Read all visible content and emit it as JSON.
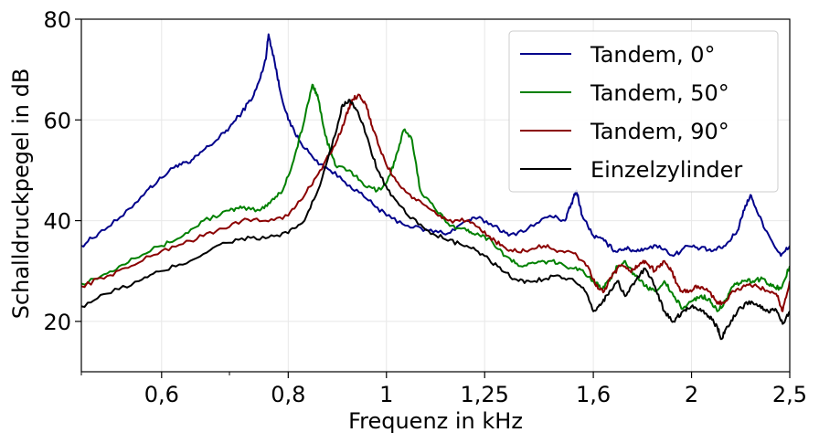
{
  "chart_data": {
    "type": "line",
    "xlabel": "Frequenz in kHz",
    "ylabel": "Schalldruckpegel in dB",
    "xscale": "log",
    "xlim": [
      0.5,
      2.5
    ],
    "ylim": [
      10,
      80
    ],
    "grid": true,
    "legend_position": "top-right",
    "x_ticks": [
      {
        "value": 0.6,
        "label": "0,6"
      },
      {
        "value": 0.8,
        "label": "0,8"
      },
      {
        "value": 1.0,
        "label": "1"
      },
      {
        "value": 1.25,
        "label": "1,25"
      },
      {
        "value": 1.6,
        "label": "1,6"
      },
      {
        "value": 2.0,
        "label": "2"
      },
      {
        "value": 2.5,
        "label": "2,5"
      }
    ],
    "x_minor_ticks": [
      0.5,
      0.7
    ],
    "y_ticks": [
      {
        "value": 20,
        "label": "20"
      },
      {
        "value": 40,
        "label": "40"
      },
      {
        "value": 60,
        "label": "60"
      },
      {
        "value": 80,
        "label": "80"
      }
    ],
    "series": [
      {
        "name": "Tandem, 0°",
        "color": "#00008b",
        "points": [
          [
            0.5,
            35
          ],
          [
            0.52,
            37.5
          ],
          [
            0.55,
            41
          ],
          [
            0.58,
            46
          ],
          [
            0.6,
            48.5
          ],
          [
            0.62,
            51
          ],
          [
            0.64,
            51.5
          ],
          [
            0.66,
            54
          ],
          [
            0.68,
            56
          ],
          [
            0.7,
            58.5
          ],
          [
            0.72,
            61.5
          ],
          [
            0.74,
            65
          ],
          [
            0.75,
            68
          ],
          [
            0.76,
            72
          ],
          [
            0.765,
            77
          ],
          [
            0.775,
            72
          ],
          [
            0.785,
            66
          ],
          [
            0.8,
            60
          ],
          [
            0.82,
            56
          ],
          [
            0.85,
            52
          ],
          [
            0.88,
            50
          ],
          [
            0.92,
            47
          ],
          [
            0.96,
            44
          ],
          [
            1.0,
            41
          ],
          [
            1.05,
            39
          ],
          [
            1.1,
            38
          ],
          [
            1.15,
            37.5
          ],
          [
            1.2,
            40
          ],
          [
            1.23,
            40.5
          ],
          [
            1.28,
            39
          ],
          [
            1.32,
            37
          ],
          [
            1.38,
            38.5
          ],
          [
            1.45,
            41
          ],
          [
            1.5,
            40
          ],
          [
            1.52,
            43
          ],
          [
            1.54,
            46
          ],
          [
            1.56,
            41
          ],
          [
            1.6,
            37
          ],
          [
            1.64,
            36
          ],
          [
            1.68,
            34
          ],
          [
            1.72,
            34.5
          ],
          [
            1.76,
            34
          ],
          [
            1.8,
            34.5
          ],
          [
            1.86,
            35
          ],
          [
            1.92,
            33
          ],
          [
            1.98,
            35
          ],
          [
            2.04,
            34.5
          ],
          [
            2.1,
            34
          ],
          [
            2.16,
            35
          ],
          [
            2.22,
            38
          ],
          [
            2.26,
            43
          ],
          [
            2.29,
            45
          ],
          [
            2.33,
            41
          ],
          [
            2.4,
            36
          ],
          [
            2.45,
            33
          ],
          [
            2.5,
            35
          ]
        ]
      },
      {
        "name": "Tandem, 50°",
        "color": "#008000",
        "points": [
          [
            0.5,
            27.5
          ],
          [
            0.53,
            29.5
          ],
          [
            0.56,
            32.5
          ],
          [
            0.6,
            35
          ],
          [
            0.63,
            37
          ],
          [
            0.66,
            40
          ],
          [
            0.7,
            42
          ],
          [
            0.72,
            42.5
          ],
          [
            0.75,
            42
          ],
          [
            0.77,
            44
          ],
          [
            0.79,
            46
          ],
          [
            0.81,
            52
          ],
          [
            0.83,
            60
          ],
          [
            0.845,
            67
          ],
          [
            0.855,
            65
          ],
          [
            0.87,
            57
          ],
          [
            0.89,
            51
          ],
          [
            0.92,
            50
          ],
          [
            0.95,
            47
          ],
          [
            0.98,
            46
          ],
          [
            1.0,
            47.5
          ],
          [
            1.02,
            52
          ],
          [
            1.04,
            58
          ],
          [
            1.06,
            56
          ],
          [
            1.08,
            46
          ],
          [
            1.12,
            42
          ],
          [
            1.16,
            39
          ],
          [
            1.2,
            38
          ],
          [
            1.23,
            37.5
          ],
          [
            1.27,
            36
          ],
          [
            1.31,
            33
          ],
          [
            1.35,
            31
          ],
          [
            1.4,
            31.5
          ],
          [
            1.45,
            32
          ],
          [
            1.5,
            31
          ],
          [
            1.55,
            30.5
          ],
          [
            1.6,
            28
          ],
          [
            1.63,
            26.5
          ],
          [
            1.66,
            28
          ],
          [
            1.69,
            31
          ],
          [
            1.72,
            32
          ],
          [
            1.76,
            29
          ],
          [
            1.8,
            27
          ],
          [
            1.84,
            26
          ],
          [
            1.88,
            28
          ],
          [
            1.92,
            25
          ],
          [
            1.96,
            22.5
          ],
          [
            2.0,
            24
          ],
          [
            2.04,
            25
          ],
          [
            2.08,
            24.5
          ],
          [
            2.12,
            22
          ],
          [
            2.16,
            24
          ],
          [
            2.2,
            27
          ],
          [
            2.25,
            28
          ],
          [
            2.3,
            28
          ],
          [
            2.35,
            28.5
          ],
          [
            2.4,
            27
          ],
          [
            2.45,
            26.5
          ],
          [
            2.5,
            31
          ]
        ]
      },
      {
        "name": "Tandem, 90°",
        "color": "#8b0000",
        "points": [
          [
            0.5,
            27
          ],
          [
            0.53,
            29
          ],
          [
            0.56,
            31
          ],
          [
            0.6,
            34
          ],
          [
            0.64,
            36
          ],
          [
            0.68,
            38
          ],
          [
            0.72,
            40
          ],
          [
            0.76,
            40
          ],
          [
            0.8,
            41
          ],
          [
            0.83,
            45
          ],
          [
            0.86,
            50
          ],
          [
            0.89,
            55
          ],
          [
            0.91,
            60
          ],
          [
            0.925,
            64
          ],
          [
            0.94,
            65
          ],
          [
            0.955,
            63
          ],
          [
            0.97,
            58
          ],
          [
            1.0,
            51
          ],
          [
            1.03,
            47
          ],
          [
            1.07,
            44
          ],
          [
            1.11,
            42
          ],
          [
            1.15,
            40
          ],
          [
            1.2,
            40
          ],
          [
            1.24,
            38
          ],
          [
            1.28,
            36
          ],
          [
            1.32,
            34
          ],
          [
            1.37,
            34
          ],
          [
            1.43,
            35
          ],
          [
            1.48,
            34
          ],
          [
            1.53,
            33.5
          ],
          [
            1.58,
            31
          ],
          [
            1.61,
            27
          ],
          [
            1.64,
            26
          ],
          [
            1.67,
            29
          ],
          [
            1.7,
            31
          ],
          [
            1.74,
            30
          ],
          [
            1.77,
            31
          ],
          [
            1.8,
            32
          ],
          [
            1.84,
            30
          ],
          [
            1.88,
            32
          ],
          [
            1.91,
            30
          ],
          [
            1.95,
            26
          ],
          [
            1.99,
            26
          ],
          [
            2.03,
            27
          ],
          [
            2.07,
            26.5
          ],
          [
            2.12,
            23.5
          ],
          [
            2.16,
            24
          ],
          [
            2.2,
            26
          ],
          [
            2.26,
            27
          ],
          [
            2.32,
            27
          ],
          [
            2.38,
            26
          ],
          [
            2.43,
            25
          ],
          [
            2.46,
            22
          ],
          [
            2.5,
            28
          ]
        ]
      },
      {
        "name": "Einzelzylinder",
        "color": "#000000",
        "points": [
          [
            0.5,
            23
          ],
          [
            0.53,
            25.5
          ],
          [
            0.57,
            28
          ],
          [
            0.6,
            30
          ],
          [
            0.64,
            32
          ],
          [
            0.68,
            35
          ],
          [
            0.72,
            36.5
          ],
          [
            0.76,
            36.5
          ],
          [
            0.8,
            37.5
          ],
          [
            0.83,
            40
          ],
          [
            0.86,
            47
          ],
          [
            0.89,
            57
          ],
          [
            0.905,
            63
          ],
          [
            0.92,
            64
          ],
          [
            0.935,
            62
          ],
          [
            0.955,
            57
          ],
          [
            0.98,
            50
          ],
          [
            1.01,
            45
          ],
          [
            1.05,
            41
          ],
          [
            1.1,
            38
          ],
          [
            1.15,
            36
          ],
          [
            1.2,
            35
          ],
          [
            1.25,
            33
          ],
          [
            1.3,
            30
          ],
          [
            1.35,
            28
          ],
          [
            1.4,
            28
          ],
          [
            1.46,
            29
          ],
          [
            1.52,
            28.5
          ],
          [
            1.57,
            26
          ],
          [
            1.6,
            22
          ],
          [
            1.63,
            23.5
          ],
          [
            1.66,
            26
          ],
          [
            1.69,
            28
          ],
          [
            1.72,
            25
          ],
          [
            1.76,
            28
          ],
          [
            1.8,
            30.5
          ],
          [
            1.84,
            27
          ],
          [
            1.88,
            22
          ],
          [
            1.92,
            20
          ],
          [
            1.96,
            22
          ],
          [
            2.0,
            23
          ],
          [
            2.04,
            22.5
          ],
          [
            2.08,
            21
          ],
          [
            2.12,
            19
          ],
          [
            2.14,
            16.5
          ],
          [
            2.17,
            19
          ],
          [
            2.22,
            22
          ],
          [
            2.28,
            24
          ],
          [
            2.33,
            23
          ],
          [
            2.38,
            22
          ],
          [
            2.42,
            22.5
          ],
          [
            2.46,
            19.5
          ],
          [
            2.5,
            22
          ]
        ]
      }
    ]
  }
}
